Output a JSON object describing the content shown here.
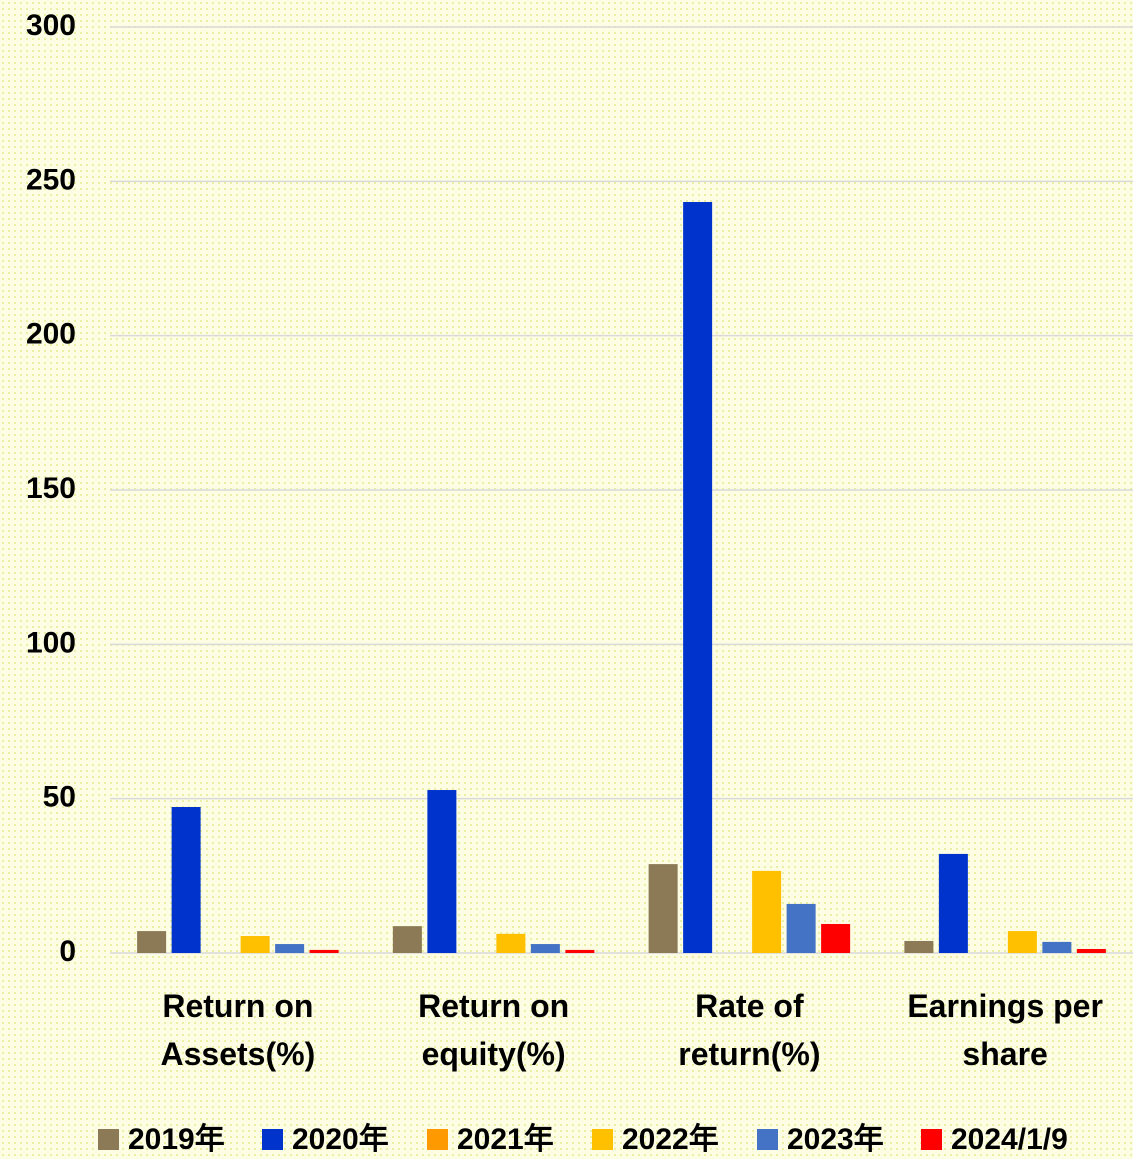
{
  "chart_data": {
    "type": "bar",
    "categories": [
      "Return on Assets(%)",
      "Return on equity(%)",
      "Rate of return(%)",
      "Earnings per share"
    ],
    "series": [
      {
        "name": "2019年",
        "color": "#8b7a55",
        "values": [
          7.1,
          8.7,
          28.8,
          3.9
        ]
      },
      {
        "name": "2020年",
        "color": "#0033cc",
        "values": [
          47.3,
          52.8,
          243.3,
          32.1
        ]
      },
      {
        "name": "2021年",
        "color": "#ff9900",
        "values": [
          0,
          0,
          0,
          0
        ]
      },
      {
        "name": "2022年",
        "color": "#ffc000",
        "values": [
          5.5,
          6.2,
          26.6,
          7.1
        ]
      },
      {
        "name": "2023年",
        "color": "#4472c4",
        "values": [
          2.9,
          2.9,
          15.9,
          3.6
        ]
      },
      {
        "name": "2024/1/9",
        "color": "#ff0000",
        "values": [
          1,
          1,
          9.4,
          1.3
        ]
      }
    ],
    "ylim": [
      0,
      300
    ],
    "yticks": [
      0,
      50,
      100,
      150,
      200,
      250,
      300
    ],
    "grid": true,
    "legend": "bottom"
  }
}
